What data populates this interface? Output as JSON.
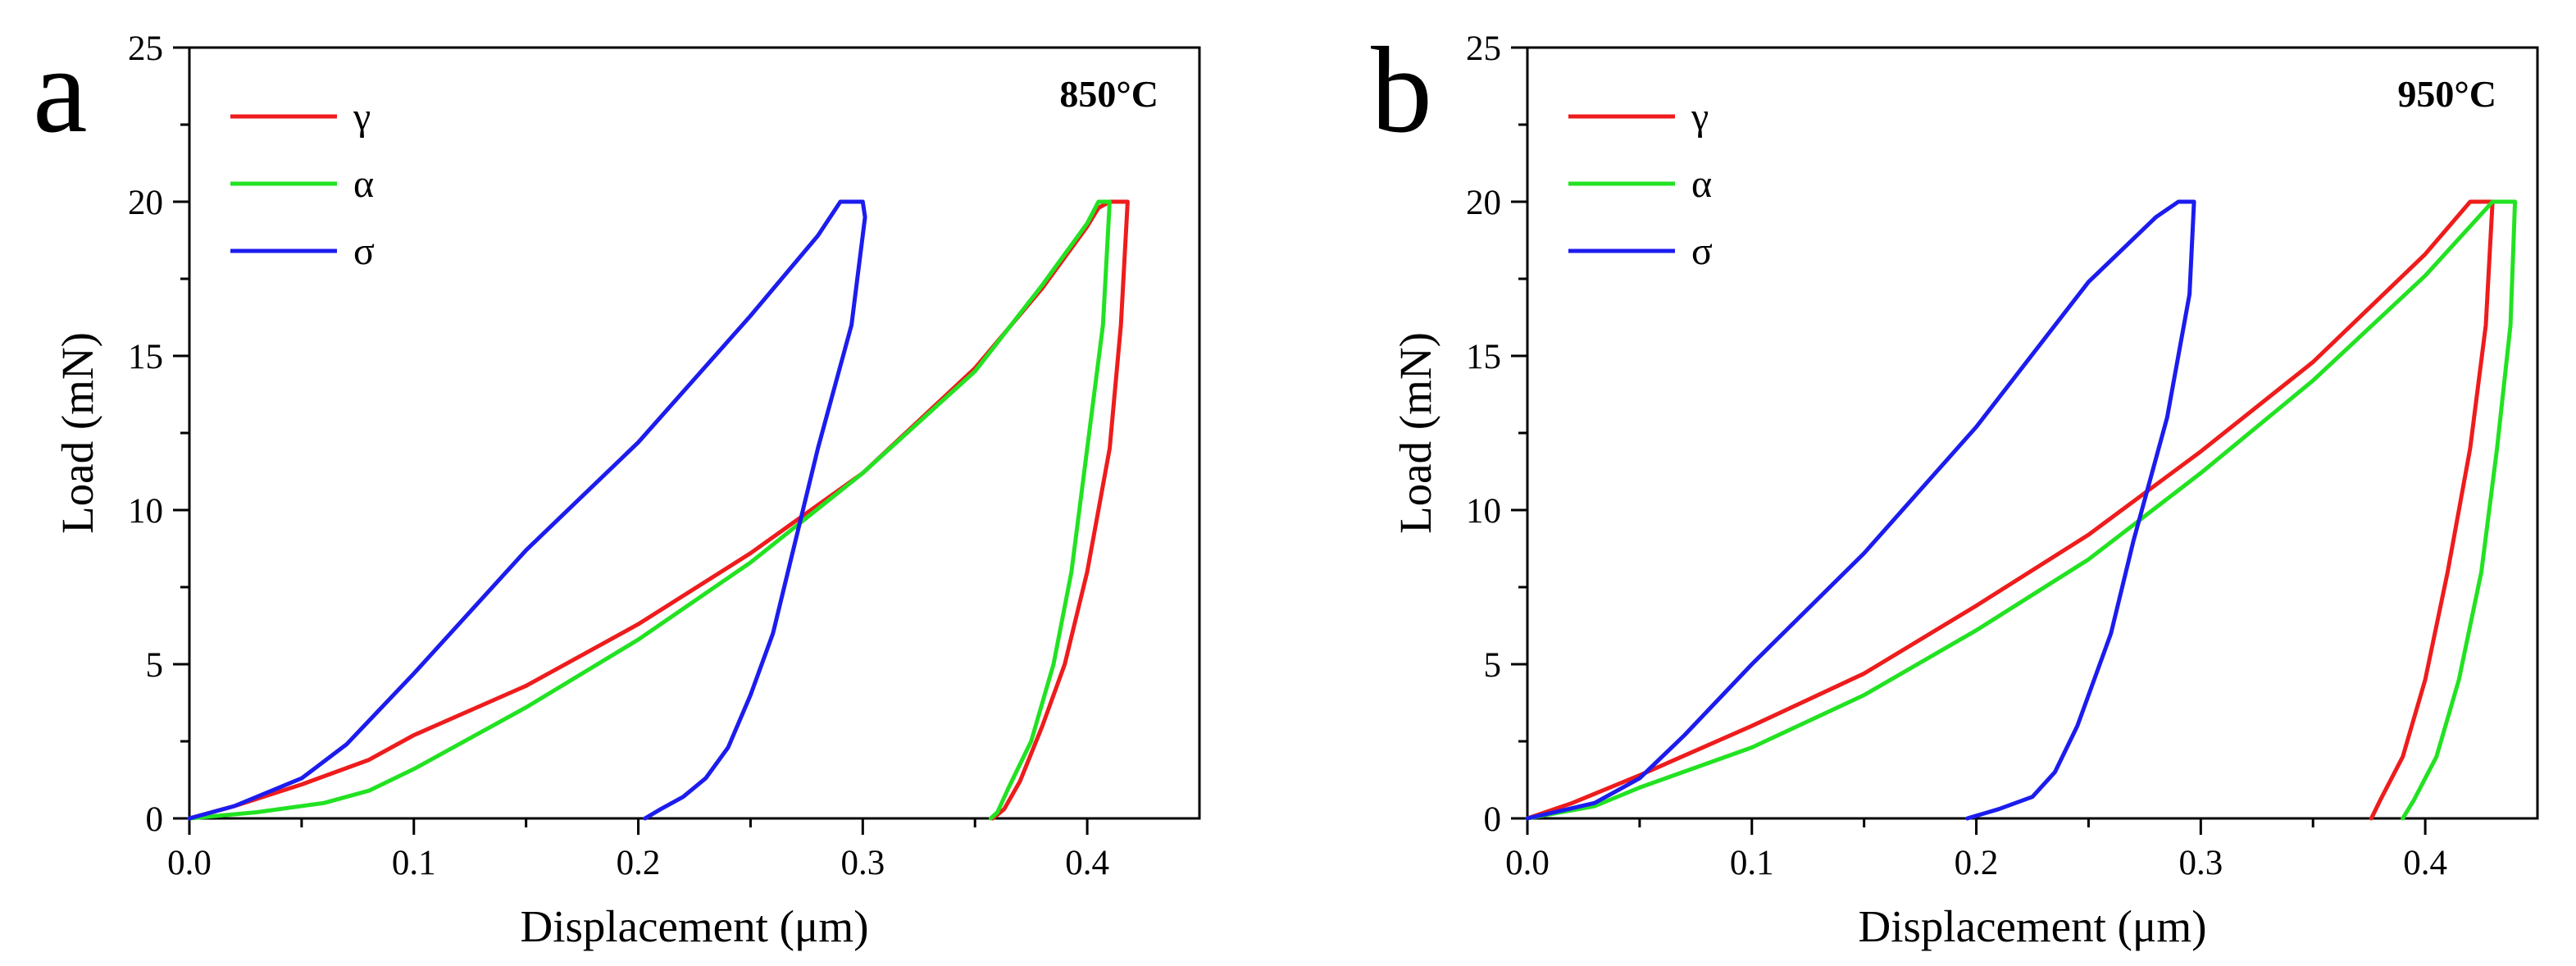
{
  "panels": [
    {
      "letter": "a",
      "temp": "850°C"
    },
    {
      "letter": "b",
      "temp": "950°C"
    }
  ],
  "chart_data": [
    {
      "type": "line",
      "panel_letter": "a",
      "annotation": "850°C",
      "xlabel": "Displacement (μm)",
      "ylabel": "Load (mN)",
      "xlim": [
        0.0,
        0.45
      ],
      "ylim": [
        0,
        25
      ],
      "xticks": [
        "0.0",
        "0.1",
        "0.2",
        "0.3",
        "0.4"
      ],
      "yticks": [
        "0",
        "5",
        "10",
        "15",
        "20",
        "25"
      ],
      "legend_position": "top-left",
      "grid": false,
      "series": [
        {
          "name": "γ",
          "color": "#ee1c1c",
          "points": [
            [
              0.0,
              0
            ],
            [
              0.02,
              0.4
            ],
            [
              0.05,
              1.1
            ],
            [
              0.08,
              1.9
            ],
            [
              0.1,
              2.7
            ],
            [
              0.15,
              4.3
            ],
            [
              0.2,
              6.3
            ],
            [
              0.25,
              8.6
            ],
            [
              0.3,
              11.2
            ],
            [
              0.35,
              14.6
            ],
            [
              0.38,
              17.2
            ],
            [
              0.4,
              19.2
            ],
            [
              0.405,
              19.8
            ],
            [
              0.41,
              20.0
            ],
            [
              0.418,
              20.0
            ],
            [
              0.415,
              16.0
            ],
            [
              0.41,
              12.0
            ],
            [
              0.4,
              8.0
            ],
            [
              0.39,
              5.0
            ],
            [
              0.38,
              3.0
            ],
            [
              0.37,
              1.2
            ],
            [
              0.363,
              0.3
            ],
            [
              0.358,
              0.0
            ]
          ]
        },
        {
          "name": "α",
          "color": "#22e222",
          "points": [
            [
              0.0,
              0
            ],
            [
              0.03,
              0.2
            ],
            [
              0.06,
              0.5
            ],
            [
              0.08,
              0.9
            ],
            [
              0.1,
              1.6
            ],
            [
              0.15,
              3.6
            ],
            [
              0.2,
              5.8
            ],
            [
              0.25,
              8.3
            ],
            [
              0.3,
              11.2
            ],
            [
              0.35,
              14.5
            ],
            [
              0.38,
              17.3
            ],
            [
              0.4,
              19.3
            ],
            [
              0.405,
              20.0
            ],
            [
              0.41,
              20.0
            ],
            [
              0.407,
              16.0
            ],
            [
              0.4,
              12.0
            ],
            [
              0.393,
              8.0
            ],
            [
              0.385,
              5.0
            ],
            [
              0.375,
              2.5
            ],
            [
              0.365,
              1.0
            ],
            [
              0.36,
              0.2
            ],
            [
              0.357,
              0.0
            ]
          ]
        },
        {
          "name": "σ",
          "color": "#1c1cee",
          "points": [
            [
              0.0,
              0
            ],
            [
              0.02,
              0.4
            ],
            [
              0.05,
              1.3
            ],
            [
              0.07,
              2.4
            ],
            [
              0.1,
              4.7
            ],
            [
              0.15,
              8.7
            ],
            [
              0.2,
              12.2
            ],
            [
              0.25,
              16.3
            ],
            [
              0.28,
              18.9
            ],
            [
              0.29,
              20.0
            ],
            [
              0.3,
              20.0
            ],
            [
              0.301,
              19.5
            ],
            [
              0.295,
              16.0
            ],
            [
              0.28,
              12.0
            ],
            [
              0.27,
              9.0
            ],
            [
              0.26,
              6.0
            ],
            [
              0.25,
              4.0
            ],
            [
              0.24,
              2.3
            ],
            [
              0.23,
              1.3
            ],
            [
              0.22,
              0.7
            ],
            [
              0.21,
              0.3
            ],
            [
              0.203,
              0.0
            ]
          ]
        }
      ]
    },
    {
      "type": "line",
      "panel_letter": "b",
      "annotation": "950°C",
      "xlabel": "Displacement (μm)",
      "ylabel": "Load (mN)",
      "xlim": [
        0.0,
        0.45
      ],
      "ylim": [
        0,
        25
      ],
      "xticks": [
        "0.0",
        "0.1",
        "0.2",
        "0.3",
        "0.4"
      ],
      "yticks": [
        "0",
        "5",
        "10",
        "15",
        "20",
        "25"
      ],
      "legend_position": "top-left",
      "grid": false,
      "series": [
        {
          "name": "γ",
          "color": "#ee1c1c",
          "points": [
            [
              0.0,
              0
            ],
            [
              0.02,
              0.5
            ],
            [
              0.05,
              1.4
            ],
            [
              0.1,
              3.0
            ],
            [
              0.15,
              4.7
            ],
            [
              0.2,
              6.9
            ],
            [
              0.25,
              9.2
            ],
            [
              0.3,
              11.9
            ],
            [
              0.35,
              14.8
            ],
            [
              0.4,
              18.3
            ],
            [
              0.42,
              20.0
            ],
            [
              0.425,
              20.0
            ],
            [
              0.43,
              20.0
            ],
            [
              0.427,
              16.0
            ],
            [
              0.42,
              12.0
            ],
            [
              0.41,
              8.0
            ],
            [
              0.4,
              4.5
            ],
            [
              0.39,
              2.0
            ],
            [
              0.38,
              0.6
            ],
            [
              0.376,
              0.0
            ]
          ]
        },
        {
          "name": "α",
          "color": "#22e222",
          "points": [
            [
              0.0,
              0
            ],
            [
              0.03,
              0.4
            ],
            [
              0.05,
              1.0
            ],
            [
              0.1,
              2.3
            ],
            [
              0.15,
              4.0
            ],
            [
              0.2,
              6.1
            ],
            [
              0.25,
              8.4
            ],
            [
              0.3,
              11.2
            ],
            [
              0.35,
              14.2
            ],
            [
              0.4,
              17.6
            ],
            [
              0.43,
              20.0
            ],
            [
              0.44,
              20.0
            ],
            [
              0.438,
              16.0
            ],
            [
              0.432,
              12.0
            ],
            [
              0.425,
              8.0
            ],
            [
              0.415,
              4.5
            ],
            [
              0.405,
              2.0
            ],
            [
              0.395,
              0.6
            ],
            [
              0.39,
              0.0
            ]
          ]
        },
        {
          "name": "σ",
          "color": "#1c1cee",
          "points": [
            [
              0.0,
              0
            ],
            [
              0.03,
              0.5
            ],
            [
              0.05,
              1.3
            ],
            [
              0.07,
              2.7
            ],
            [
              0.1,
              5.0
            ],
            [
              0.15,
              8.6
            ],
            [
              0.2,
              12.7
            ],
            [
              0.25,
              17.4
            ],
            [
              0.28,
              19.5
            ],
            [
              0.29,
              20.0
            ],
            [
              0.297,
              20.0
            ],
            [
              0.295,
              17.0
            ],
            [
              0.285,
              13.0
            ],
            [
              0.27,
              9.0
            ],
            [
              0.26,
              6.0
            ],
            [
              0.245,
              3.0
            ],
            [
              0.235,
              1.5
            ],
            [
              0.225,
              0.7
            ],
            [
              0.21,
              0.3
            ],
            [
              0.196,
              0.0
            ]
          ]
        }
      ]
    }
  ]
}
